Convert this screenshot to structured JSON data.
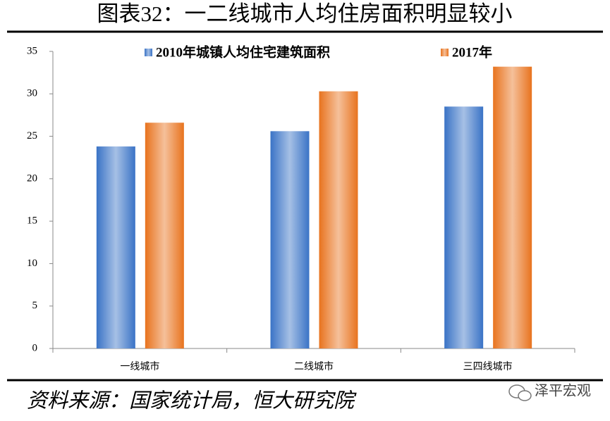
{
  "chart_data": {
    "type": "bar",
    "title": "图表32：一二线城市人均住房面积明显较小",
    "categories": [
      "一线城市",
      "二线城市",
      "三四线城市"
    ],
    "series": [
      {
        "name": "2010年城镇人均住宅建筑面积",
        "color": "#3a73c6",
        "values": [
          23.8,
          25.6,
          28.5
        ]
      },
      {
        "name": "2017年",
        "color": "#e8731e",
        "values": [
          26.6,
          30.3,
          33.2
        ]
      }
    ],
    "ylim": [
      0,
      35
    ],
    "yticks": [
      0,
      5,
      10,
      15,
      20,
      25,
      30,
      35
    ],
    "legend": "top",
    "source": "资料来源：国家统计局，恒大研究院",
    "watermark": "泽平宏观"
  }
}
